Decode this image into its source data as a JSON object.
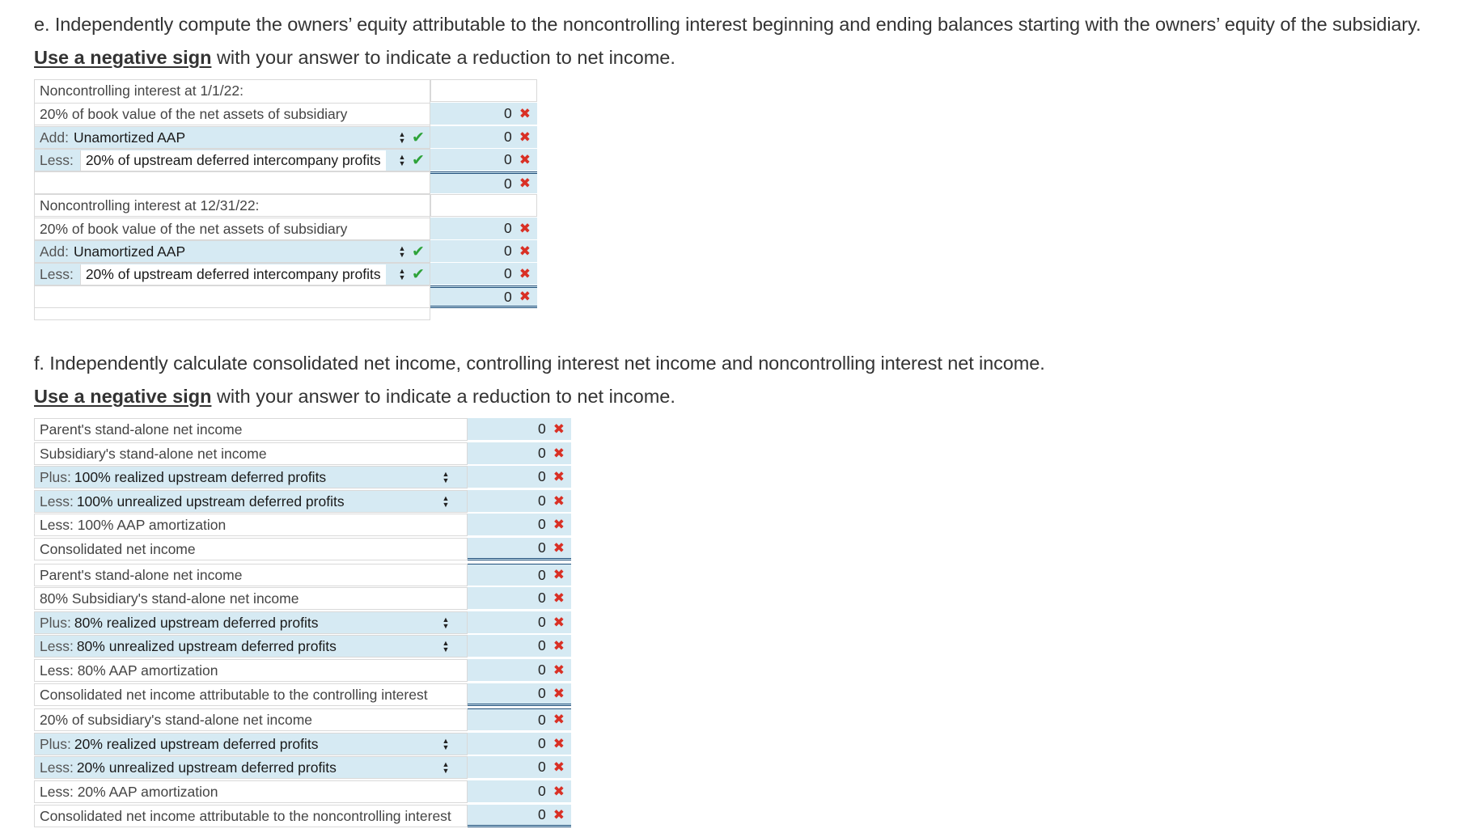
{
  "section_e": {
    "heading": "e. Independently compute the owners’ equity attributable to the noncontrolling interest beginning and ending balances starting with the owners’ equity of the subsidiary.",
    "instruction_emph": "Use a negative sign",
    "instruction_rest": " with your answer to indicate a reduction to net income.",
    "group1": {
      "header": "Noncontrolling interest at 1/1/22:",
      "line1": "20% of book value of the net assets of subsidiary",
      "line2_prefix": "Add:",
      "line2_select": "Unamortized AAP",
      "line3_prefix": "Less:",
      "line3_select": "20% of upstream deferred intercompany profits",
      "values": [
        "0",
        "0",
        "0",
        "0"
      ]
    },
    "group2": {
      "header": "Noncontrolling interest at 12/31/22:",
      "line1": "20% of book value of the net assets of subsidiary",
      "line2_prefix": "Add:",
      "line2_select": "Unamortized AAP",
      "line3_prefix": "Less:",
      "line3_select": "20% of upstream deferred intercompany profits",
      "values": [
        "0",
        "0",
        "0",
        "0"
      ]
    }
  },
  "section_f": {
    "heading": "f. Independently calculate consolidated net income, controlling interest net income and noncontrolling interest net income.",
    "instruction_emph": "Use a negative sign",
    "instruction_rest": " with your answer to indicate a reduction to net income.",
    "rows": [
      {
        "label": "Parent's stand-alone net income",
        "value": "0"
      },
      {
        "label": "Subsidiary's stand-alone net income",
        "value": "0"
      },
      {
        "prefix": "Plus:",
        "select": "100% realized upstream deferred profits",
        "value": "0"
      },
      {
        "prefix": "Less:",
        "select": "100% unrealized upstream deferred profits",
        "value": "0"
      },
      {
        "label": "Less: 100% AAP amortization",
        "value": "0"
      },
      {
        "label": "Consolidated net income",
        "value": "0"
      },
      {
        "label": "Parent's stand-alone net income",
        "value": "0"
      },
      {
        "label": "80% Subsidiary's stand-alone net income",
        "value": "0"
      },
      {
        "prefix": "Plus:",
        "select": "80% realized upstream deferred profits",
        "value": "0"
      },
      {
        "prefix": "Less:",
        "select": "80% unrealized upstream deferred profits",
        "value": "0"
      },
      {
        "label": "Less: 80% AAP amortization",
        "value": "0"
      },
      {
        "label": "Consolidated net income attributable to the controlling interest",
        "value": "0"
      },
      {
        "label": "20% of subsidiary's stand-alone net income",
        "value": "0"
      },
      {
        "prefix": "Plus:",
        "select": "20% realized upstream deferred profits",
        "value": "0"
      },
      {
        "prefix": "Less:",
        "select": "20% unrealized upstream deferred profits",
        "value": "0"
      },
      {
        "label": "Less: 20% AAP amortization",
        "value": "0"
      },
      {
        "label": "Consolidated net income attributable to the noncontrolling interest",
        "value": "0"
      }
    ]
  },
  "icons": {
    "correct": "check-icon",
    "incorrect": "x-icon",
    "select": "updown-arrows-icon"
  },
  "colors": {
    "cell_blue": "#d6eaf3",
    "correct": "#2ea33a",
    "incorrect": "#d93025",
    "total_rule": "#1f4e79"
  }
}
